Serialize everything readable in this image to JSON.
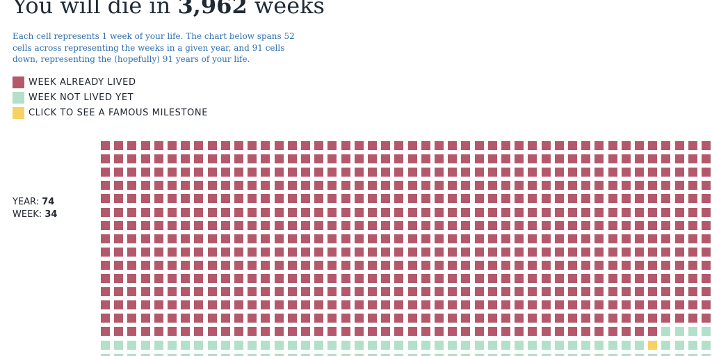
{
  "header": {
    "title_prefix": "You will die in",
    "weeks_remaining": "3,962",
    "title_suffix": "weeks"
  },
  "description": "Each cell represents 1 week of your life. The chart below spans 52 cells across representing the weeks in a given year, and 91 cells down, representing the (hopefully) 91 years of your life.",
  "legend": [
    {
      "label": "WEEK ALREADY LIVED",
      "color": "#b3596b"
    },
    {
      "label": "WEEK NOT LIVED YET",
      "color": "#b2e0c8"
    },
    {
      "label": "CLICK TO SEE A FAMOUS MILESTONE",
      "color": "#f6d165"
    }
  ],
  "stats": {
    "year_label": "YEAR:",
    "year_value": "74",
    "week_label": "WEEK:",
    "week_value": "34"
  },
  "grid": {
    "colors": {
      "lived": "#b3596b",
      "not_lived": "#b2e0c8",
      "milestone": "#f6d165"
    },
    "visible_rows": [
      {
        "lived": 46
      },
      {
        "lived": 46
      },
      {
        "lived": 46
      },
      {
        "lived": 46
      },
      {
        "lived": 46
      },
      {
        "lived": 46
      },
      {
        "lived": 46
      },
      {
        "lived": 46
      },
      {
        "lived": 46
      },
      {
        "lived": 46
      },
      {
        "lived": 46
      },
      {
        "lived": 46
      },
      {
        "lived": 46
      },
      {
        "lived": 46
      },
      {
        "lived": 42,
        "partial_to": 46
      },
      {
        "lived": 0,
        "milestone_at": 41
      },
      {
        "lived": 0
      }
    ]
  }
}
